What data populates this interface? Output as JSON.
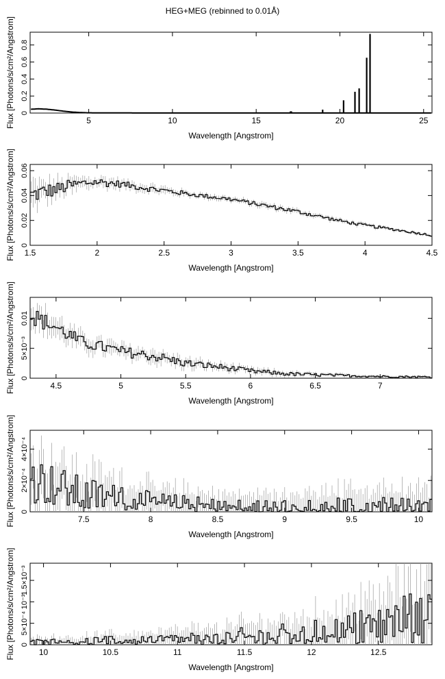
{
  "title": "HEG+MEG (rebinned to 0.01Å)",
  "chart_data": [
    {
      "type": "line",
      "xlabel": "Wavelength [Angstrom]",
      "ylabel": "Flux [Photons/s/cm²/Angstrom]",
      "xlim": [
        1.5,
        25.5
      ],
      "ylim": [
        0,
        0.95
      ],
      "xticks": [
        5,
        10,
        15,
        20,
        25
      ],
      "xtick_labels": [
        "5",
        "10",
        "15",
        "20",
        "25"
      ],
      "yticks": [
        0,
        0.2,
        0.4,
        0.6,
        0.8
      ],
      "ytick_labels": [
        "0",
        "0.2",
        "0.4",
        "0.6",
        "0.8"
      ],
      "series": [
        {
          "style": "continuum",
          "x": [
            1.6,
            2.0,
            2.5,
            3.0,
            3.5,
            4.0,
            4.5,
            5.0,
            6.0,
            8.0,
            12.0,
            18.0,
            25.5
          ],
          "y": [
            0.045,
            0.05,
            0.045,
            0.035,
            0.022,
            0.012,
            0.006,
            0.003,
            0.002,
            0.001,
            0.001,
            0.001,
            0.001
          ]
        },
        {
          "style": "lines",
          "x": [
            18.97,
            20.22,
            20.9,
            21.15,
            21.6,
            21.8,
            17.05,
            17.1
          ],
          "y": [
            0.04,
            0.15,
            0.25,
            0.29,
            0.65,
            0.93,
            0.02,
            0.02
          ]
        }
      ]
    },
    {
      "type": "line",
      "xlabel": "Wavelength [Angstrom]",
      "ylabel": "Flux [Photons/s/cm²/Angstrom]",
      "xlim": [
        1.5,
        4.5
      ],
      "ylim": [
        0,
        0.065
      ],
      "xticks": [
        1.5,
        2,
        2.5,
        3,
        3.5,
        4,
        4.5
      ],
      "xtick_labels": [
        "1.5",
        "2",
        "2.5",
        "3",
        "3.5",
        "4",
        "4.5"
      ],
      "yticks": [
        0,
        0.02,
        0.04,
        0.06
      ],
      "ytick_labels": [
        "0",
        "0.02",
        "0.04",
        "0.06"
      ],
      "series": [
        {
          "style": "histogram",
          "x": [
            1.5,
            1.6,
            1.7,
            1.8,
            1.9,
            2.0,
            2.1,
            2.2,
            2.3,
            2.5,
            2.7,
            3.0,
            3.2,
            3.5,
            3.8,
            4.0,
            4.2,
            4.5
          ],
          "y": [
            0.04,
            0.043,
            0.045,
            0.048,
            0.05,
            0.051,
            0.05,
            0.049,
            0.047,
            0.044,
            0.041,
            0.037,
            0.033,
            0.027,
            0.02,
            0.016,
            0.013,
            0.008
          ],
          "noise": [
            0.01,
            0.008,
            0.007,
            0.006,
            0.005,
            0.004,
            0.004,
            0.003,
            0.003,
            0.003,
            0.002,
            0.002,
            0.002,
            0.002,
            0.0015,
            0.0015,
            0.0012,
            0.001
          ]
        }
      ]
    },
    {
      "type": "line",
      "xlabel": "Wavelength [Angstrom]",
      "ylabel": "Flux [Photons/s/cm²/Angstrom]",
      "xlim": [
        4.3,
        7.4
      ],
      "ylim": [
        0,
        0.0135
      ],
      "xticks": [
        4.5,
        5,
        5.5,
        6,
        6.5,
        7
      ],
      "xtick_labels": [
        "4.5",
        "5",
        "5.5",
        "6",
        "6.5",
        "7"
      ],
      "yticks": [
        0,
        0.005,
        0.01
      ],
      "ytick_labels": [
        "0",
        "5×10⁻³",
        "0.01"
      ],
      "series": [
        {
          "style": "histogram",
          "x": [
            4.3,
            4.5,
            4.7,
            5.0,
            5.3,
            5.5,
            5.8,
            6.0,
            6.3,
            6.6,
            7.0,
            7.4
          ],
          "y": [
            0.0105,
            0.0085,
            0.006,
            0.0045,
            0.0035,
            0.0025,
            0.0018,
            0.0012,
            0.0007,
            0.0005,
            0.0003,
            0.0002
          ],
          "noise": [
            0.002,
            0.0016,
            0.0013,
            0.0011,
            0.001,
            0.0008,
            0.0006,
            0.0005,
            0.0004,
            0.0003,
            0.0002,
            0.0002
          ]
        }
      ]
    },
    {
      "type": "line",
      "xlabel": "Wavelength [Angstrom]",
      "ylabel": "Flux [Photons/s/cm²/Angstrom]",
      "xlim": [
        7.1,
        10.1
      ],
      "ylim": [
        0,
        0.00052
      ],
      "xticks": [
        7.5,
        8,
        8.5,
        9,
        9.5,
        10
      ],
      "xtick_labels": [
        "7.5",
        "8",
        "8.5",
        "9",
        "9.5",
        "10"
      ],
      "yticks": [
        0,
        0.0002,
        0.0004
      ],
      "ytick_labels": [
        "0",
        "2×10⁻⁴",
        "4×10⁻⁴"
      ],
      "series": [
        {
          "style": "histogram",
          "x": [
            7.1,
            7.3,
            7.5,
            7.6,
            7.8,
            8.0,
            8.2,
            8.4,
            8.6,
            9.0,
            9.5,
            10.1
          ],
          "y": [
            0.00022,
            0.00016,
            0.0001,
            0.0001,
            7e-05,
            5e-05,
            4e-05,
            3e-05,
            2e-05,
            1e-05,
            1e-05,
            1e-05
          ],
          "noise": [
            0.0002,
            0.00017,
            0.00015,
            0.00014,
            0.00012,
            0.0001,
            9e-05,
            8e-05,
            8e-05,
            9e-05,
            0.00011,
            0.00012
          ]
        }
      ]
    },
    {
      "type": "line",
      "xlabel": "Wavelength [Angstrom]",
      "ylabel": "Flux [Photons/s/cm²/Angstrom]",
      "xlim": [
        9.9,
        12.9
      ],
      "ylim": [
        0,
        0.0019
      ],
      "xticks": [
        10,
        10.5,
        11,
        11.5,
        12,
        12.5
      ],
      "xtick_labels": [
        "10",
        "10.5",
        "11",
        "11.5",
        "12",
        "12.5"
      ],
      "yticks": [
        0,
        0.0005,
        0.001,
        0.0015
      ],
      "ytick_labels": [
        "0",
        "5×10⁻⁴",
        "10⁻³",
        "1.5×10⁻³"
      ],
      "series": [
        {
          "style": "histogram",
          "x": [
            9.9,
            10.5,
            11.0,
            11.5,
            12.0,
            12.5,
            12.9
          ],
          "y": [
            5e-05,
            8e-05,
            0.0001,
            0.00015,
            0.0002,
            0.0004,
            0.0007
          ],
          "noise": [
            0.0001,
            0.00015,
            0.00022,
            0.00032,
            0.00045,
            0.00065,
            0.00105
          ]
        }
      ]
    }
  ]
}
